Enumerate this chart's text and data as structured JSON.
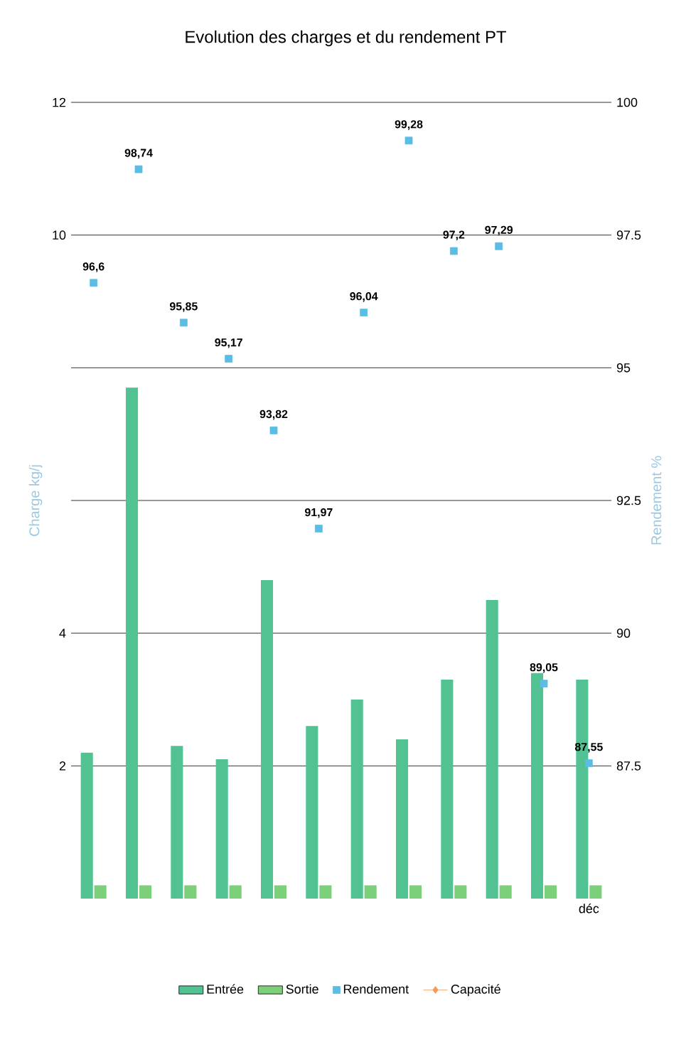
{
  "chart_data": {
    "type": "bar",
    "title": "Evolution des charges et du rendement PT",
    "ylabel": "Charge kg/j",
    "y2label": "Rendement %",
    "categories": [
      null,
      null,
      null,
      null,
      null,
      null,
      null,
      null,
      null,
      null,
      null,
      "déc"
    ],
    "series": [
      {
        "name": "Entrée",
        "color": "#52c293",
        "values": [
          2.2,
          7.7,
          2.3,
          2.1,
          4.8,
          2.6,
          3.0,
          2.4,
          3.3,
          4.5,
          3.4,
          3.3
        ]
      },
      {
        "name": "Sortie",
        "color": "#7cd07a",
        "values": [
          0.2,
          0.2,
          0.2,
          0.2,
          0.2,
          0.2,
          0.2,
          0.2,
          0.2,
          0.2,
          0.2,
          0.2
        ]
      },
      {
        "name": "Rendement",
        "type": "scatter",
        "axis": "y2",
        "marker": "square",
        "color": "#5bbde4",
        "values": [
          96.6,
          98.74,
          95.85,
          95.17,
          93.82,
          91.97,
          96.04,
          99.28,
          97.2,
          97.29,
          89.05,
          87.55
        ],
        "value_labels": [
          "96,6",
          "98,74",
          "95,85",
          "95,17",
          "93,82",
          "91,97",
          "96,04",
          "99,28",
          "97,2",
          "97,29",
          "89,05",
          "87,55"
        ]
      },
      {
        "name": "Capacité",
        "type": "line",
        "axis": "y2",
        "marker": "diamond",
        "color": "#f59a5a",
        "values": [
          null,
          null,
          null,
          null,
          null,
          null,
          null,
          null,
          null,
          null,
          null,
          null
        ]
      }
    ],
    "ylim": [
      0,
      12
    ],
    "yticks": [
      2,
      4,
      {
        "value": 6,
        "label": null
      },
      {
        "value": 8,
        "label": null
      },
      10,
      12
    ],
    "y2lim": [
      85,
      100
    ],
    "y2ticks": [
      87.5,
      90,
      92.5,
      95,
      97.5,
      100
    ],
    "grid": "y",
    "legend": "bottom"
  }
}
